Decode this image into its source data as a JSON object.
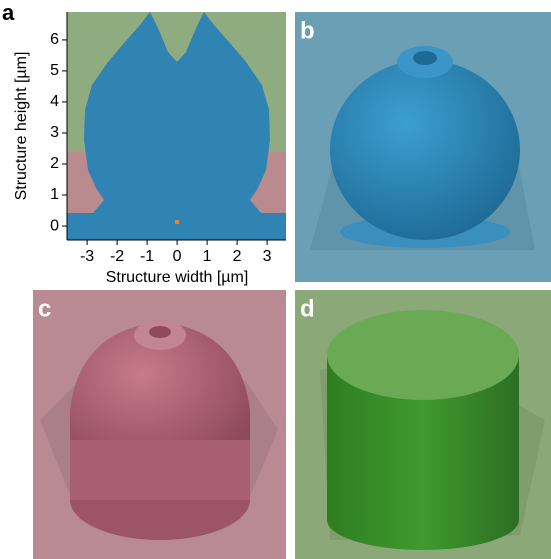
{
  "panels": [
    {
      "label": "a"
    },
    {
      "label": "b"
    },
    {
      "label": "c"
    },
    {
      "label": "d"
    }
  ],
  "chart_data": {
    "type": "cross-section",
    "xlabel": "Structure width [µm]",
    "ylabel": "Structure height [µm]",
    "xlim": [
      -3.67,
      3.63
    ],
    "ylim": [
      -0.45,
      6.9
    ],
    "xticks": [
      -3,
      -2,
      -1,
      0,
      1,
      2,
      3
    ],
    "yticks": [
      0,
      1,
      2,
      3,
      4,
      5,
      6
    ]
  }
}
